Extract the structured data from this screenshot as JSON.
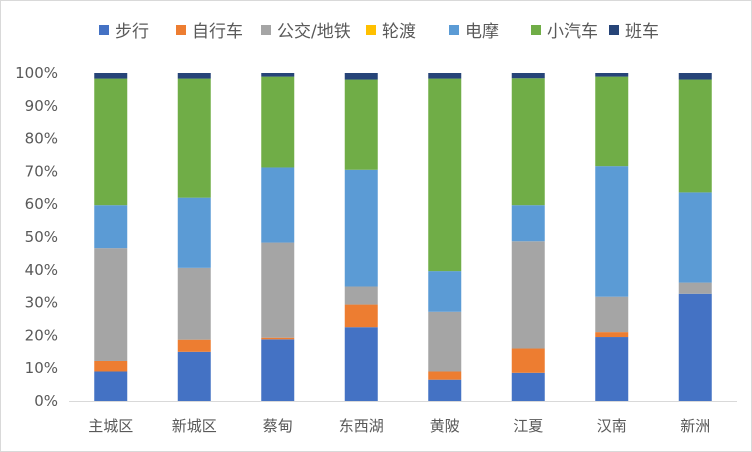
{
  "chart_data": {
    "type": "bar",
    "stacked": true,
    "categories": [
      "主城区",
      "新城区",
      "蔡甸",
      "东西湖",
      "黄陂",
      "江夏",
      "汉南",
      "新洲"
    ],
    "series": [
      {
        "name": "步行",
        "color": "#4472c4",
        "values": [
          9,
          15,
          18.8,
          22.5,
          6.5,
          8.6,
          19.5,
          32.7
        ]
      },
      {
        "name": "自行车",
        "color": "#ed7d31",
        "values": [
          3.2,
          3.7,
          0.5,
          6.9,
          2.5,
          7.4,
          1.5,
          0
        ]
      },
      {
        "name": "公交/地铁",
        "color": "#a5a5a5",
        "values": [
          34.4,
          21.9,
          29,
          5.5,
          18.2,
          32.7,
          10.8,
          3.4
        ]
      },
      {
        "name": "轮渡",
        "color": "#ffc000",
        "values": [
          0,
          0,
          0,
          0,
          0,
          0,
          0,
          0
        ]
      },
      {
        "name": "电摩",
        "color": "#5b9bd5",
        "values": [
          13.1,
          21.4,
          22.9,
          35.6,
          12.4,
          11,
          39.8,
          27.5
        ]
      },
      {
        "name": "小汽车",
        "color": "#70ad47",
        "values": [
          38.6,
          36.3,
          27.7,
          27.5,
          58.7,
          38.7,
          27.3,
          34.4
        ]
      },
      {
        "name": "班车",
        "color": "#264478",
        "values": [
          1.7,
          1.7,
          1.1,
          2,
          1.7,
          1.6,
          1.1,
          2
        ]
      }
    ],
    "yticks": [
      "0%",
      "10%",
      "20%",
      "30%",
      "40%",
      "50%",
      "60%",
      "70%",
      "80%",
      "90%",
      "100%"
    ],
    "ylim": [
      0,
      100
    ],
    "grid": false,
    "legend_position": "top"
  }
}
